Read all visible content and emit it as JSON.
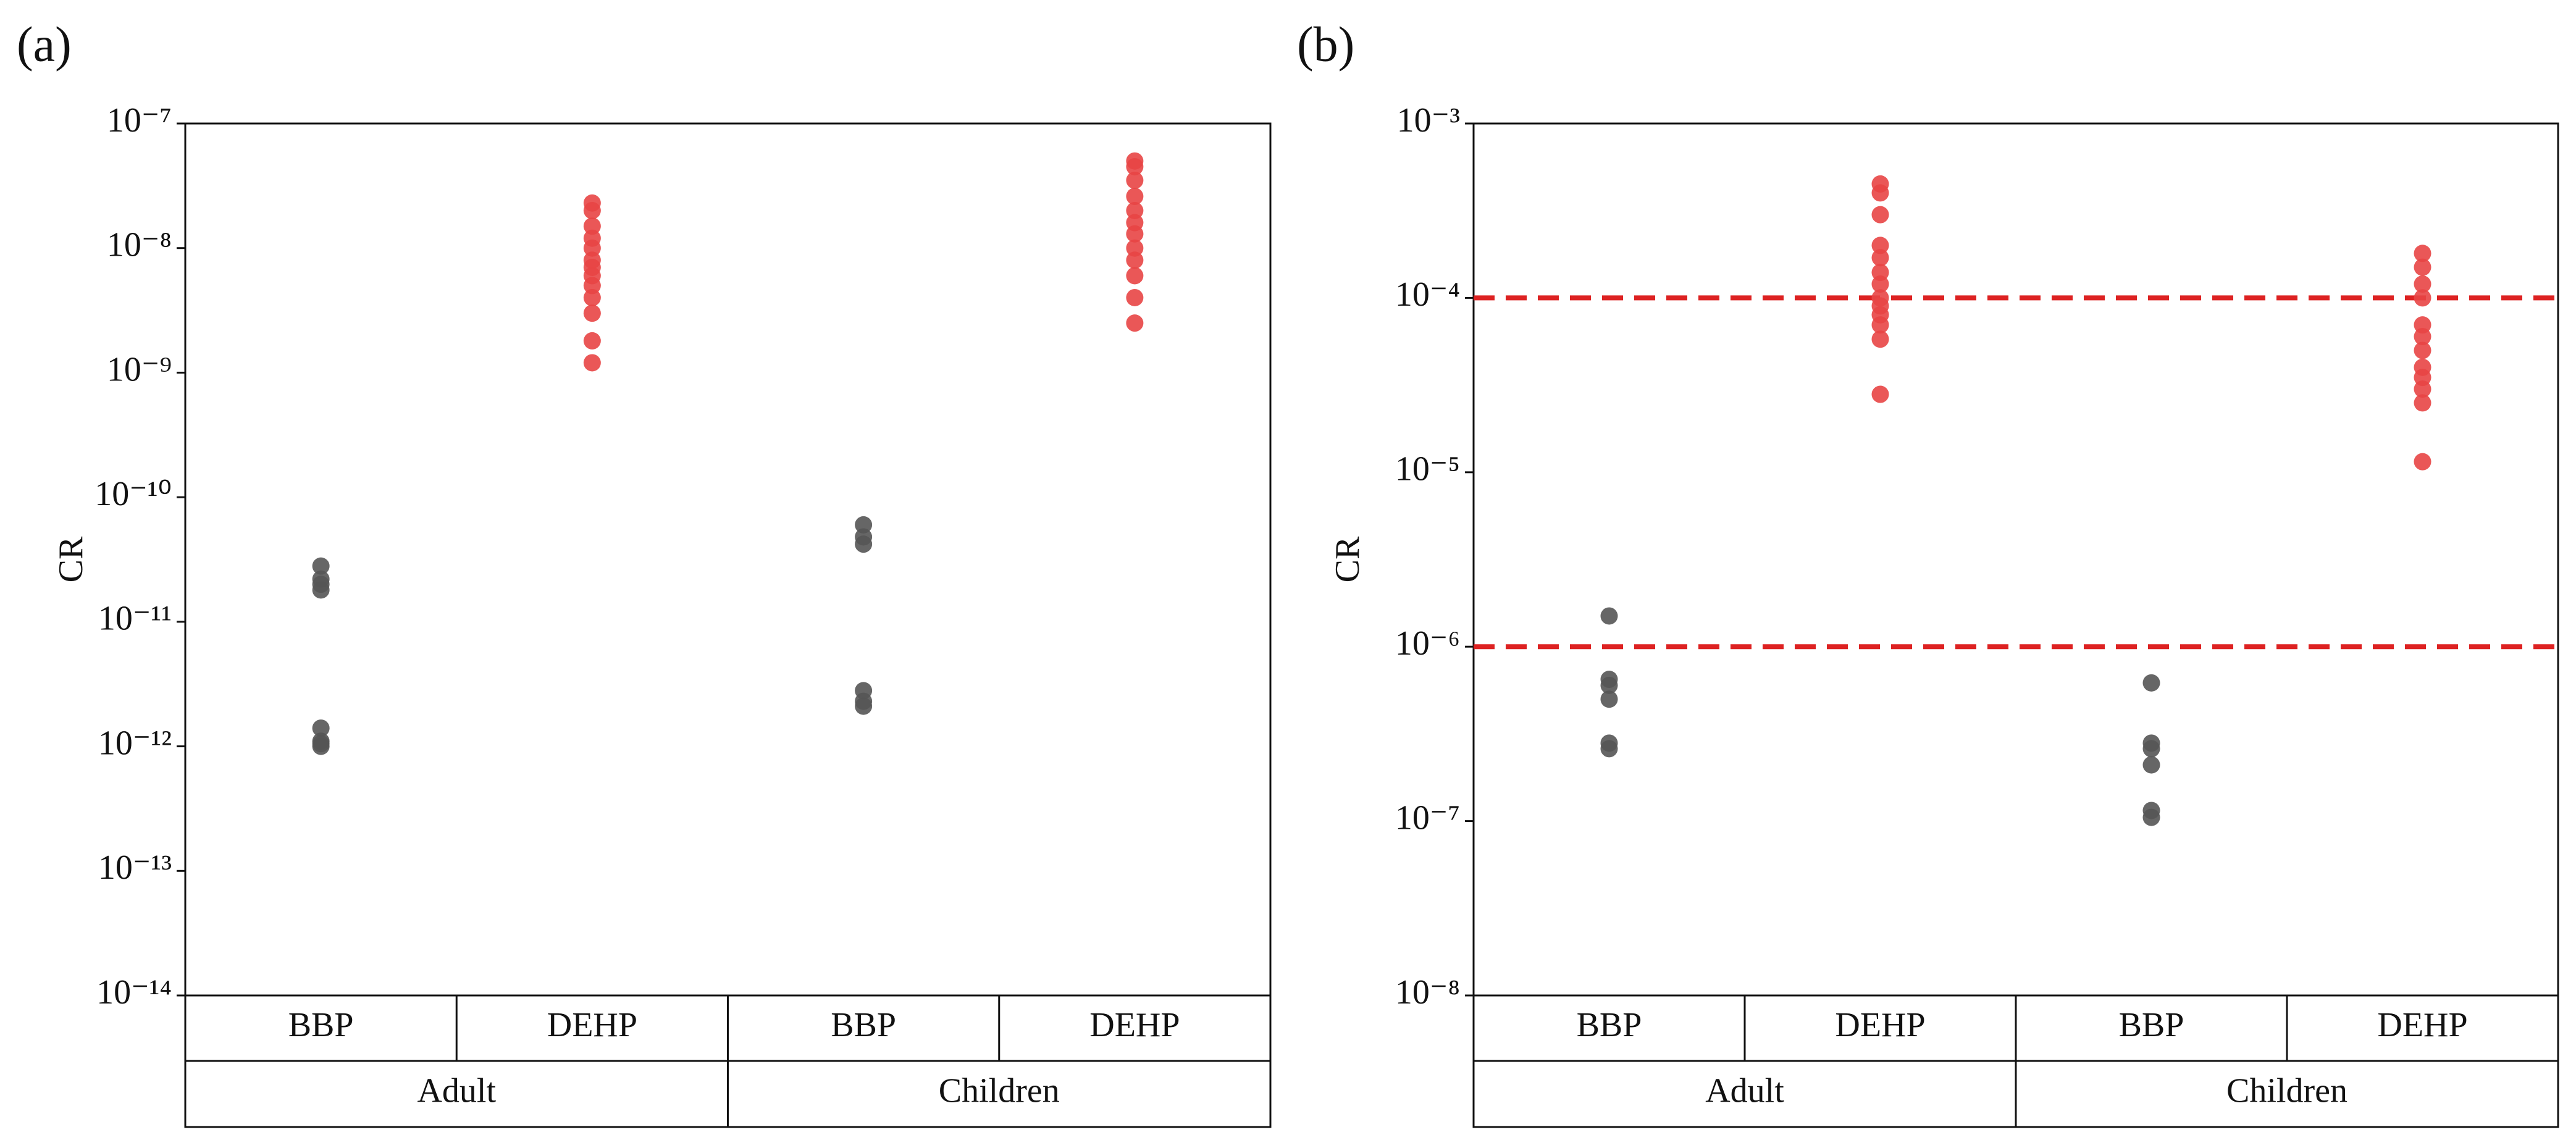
{
  "chart_data": [
    {
      "type": "scatter",
      "panel": "(a)",
      "ylabel": "CR",
      "yscale": "log",
      "ylim": [
        1e-14,
        1e-07
      ],
      "yticks": [
        {
          "value": 1e-14,
          "label": "10⁻¹⁴"
        },
        {
          "value": 1e-13,
          "label": "10⁻¹³"
        },
        {
          "value": 1e-12,
          "label": "10⁻¹²"
        },
        {
          "value": 1e-11,
          "label": "10⁻¹¹"
        },
        {
          "value": 1e-10,
          "label": "10⁻¹⁰"
        },
        {
          "value": 1e-09,
          "label": "10⁻⁹"
        },
        {
          "value": 1e-08,
          "label": "10⁻⁸"
        },
        {
          "value": 1e-07,
          "label": "10⁻⁷"
        }
      ],
      "categories": [
        "BBP",
        "DEHP",
        "BBP",
        "DEHP"
      ],
      "groups": [
        "Adult",
        "Children"
      ],
      "colors": [
        "#555555",
        "#e84545",
        "#555555",
        "#e84545"
      ],
      "values": [
        [
          2.8e-11,
          2.2e-11,
          2e-11,
          1.8e-11,
          1.4e-12,
          1.1e-12,
          1.05e-12,
          1e-12
        ],
        [
          1.2e-09,
          1.8e-09,
          3e-09,
          4e-09,
          5e-09,
          6e-09,
          7e-09,
          8e-09,
          1e-08,
          1.2e-08,
          1.5e-08,
          2e-08,
          2.3e-08
        ],
        [
          6e-11,
          4.8e-11,
          4.2e-11,
          2.8e-12,
          2.3e-12,
          2.1e-12
        ],
        [
          2.5e-09,
          4e-09,
          6e-09,
          8e-09,
          1e-08,
          1.3e-08,
          1.6e-08,
          2e-08,
          2.6e-08,
          3.5e-08,
          4.5e-08,
          5e-08
        ]
      ]
    },
    {
      "type": "scatter",
      "panel": "(b)",
      "ylabel": "CR",
      "yscale": "log",
      "ylim": [
        1e-08,
        0.001
      ],
      "yticks": [
        {
          "value": 1e-08,
          "label": "10⁻⁸"
        },
        {
          "value": 1e-07,
          "label": "10⁻⁷"
        },
        {
          "value": 1e-06,
          "label": "10⁻⁶"
        },
        {
          "value": 1e-05,
          "label": "10⁻⁵"
        },
        {
          "value": 0.0001,
          "label": "10⁻⁴"
        },
        {
          "value": 0.001,
          "label": "10⁻³"
        }
      ],
      "categories": [
        "BBP",
        "DEHP",
        "BBP",
        "DEHP"
      ],
      "groups": [
        "Adult",
        "Children"
      ],
      "colors": [
        "#555555",
        "#e84545",
        "#555555",
        "#e84545"
      ],
      "reference_lines": [
        0.0001,
        1e-06
      ],
      "reference_color": "#dd2222",
      "values": [
        [
          1.5e-06,
          6.5e-07,
          6e-07,
          5e-07,
          2.8e-07,
          2.6e-07
        ],
        [
          2.8e-05,
          5.8e-05,
          7e-05,
          8e-05,
          9e-05,
          0.0001,
          0.00012,
          0.00014,
          0.00017,
          0.0002,
          0.0003,
          0.0004,
          0.00045
        ],
        [
          6.2e-07,
          2.8e-07,
          2.6e-07,
          2.1e-07,
          1.15e-07,
          1.05e-07
        ],
        [
          1.15e-05,
          2.5e-05,
          3e-05,
          3.5e-05,
          4e-05,
          5e-05,
          6e-05,
          7e-05,
          0.0001,
          0.00012,
          0.00015,
          0.00018
        ]
      ]
    }
  ]
}
